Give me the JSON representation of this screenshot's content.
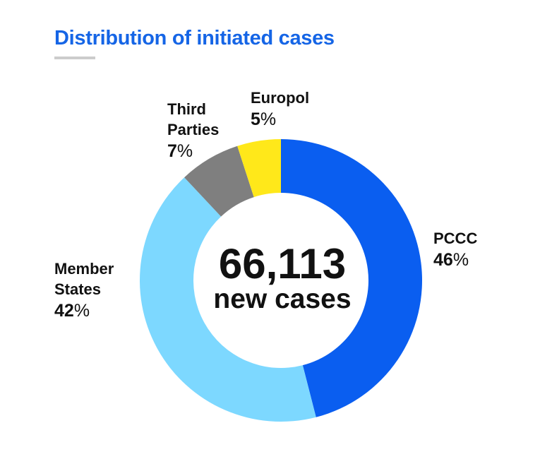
{
  "title": "Distribution of initiated cases",
  "center": {
    "value": "66,113",
    "label": "new cases"
  },
  "chart_data": {
    "type": "pie",
    "title": "Distribution of initiated cases",
    "donut": true,
    "total": 66113,
    "slices": [
      {
        "key": "pccc",
        "name": "PCCC",
        "value": 46,
        "color": "#0a5ef0"
      },
      {
        "key": "member-states",
        "name": "Member\nStates",
        "value": 42,
        "color": "#7dd8ff"
      },
      {
        "key": "third-parties",
        "name": "Third\nParties",
        "value": 7,
        "color": "#7f7f7f"
      },
      {
        "key": "europol",
        "name": "Europol",
        "value": 5,
        "color": "#ffe81a"
      }
    ]
  }
}
